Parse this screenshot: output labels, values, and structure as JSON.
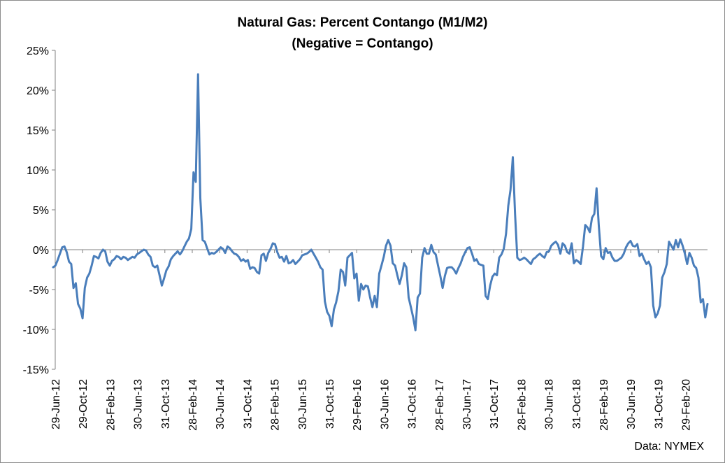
{
  "chart_data": {
    "type": "line",
    "title": "Natural Gas: Percent Contango (M1/M2)",
    "subtitle": "(Negative = Contango)",
    "source": "Data: NYMEX",
    "xlabel": "",
    "ylabel": "",
    "ylim": [
      -15,
      25
    ],
    "yticks": [
      "-15%",
      "-10%",
      "-5%",
      "0%",
      "5%",
      "10%",
      "15%",
      "20%",
      "25%"
    ],
    "ytick_values": [
      -15,
      -10,
      -5,
      0,
      5,
      10,
      15,
      20,
      25
    ],
    "xticks": [
      "29-Jun-12",
      "29-Oct-12",
      "28-Feb-13",
      "30-Jun-13",
      "31-Oct-13",
      "28-Feb-14",
      "30-Jun-14",
      "31-Oct-14",
      "28-Feb-15",
      "30-Jun-15",
      "31-Oct-15",
      "29-Feb-16",
      "30-Jun-16",
      "31-Oct-16",
      "28-Feb-17",
      "30-Jun-17",
      "31-Oct-17",
      "28-Feb-18",
      "30-Jun-18",
      "31-Oct-18",
      "28-Feb-19",
      "30-Jun-19",
      "31-Oct-19",
      "29-Feb-20"
    ],
    "grid": false,
    "legend": "none",
    "series_color": "#4a7ebb",
    "series": [
      {
        "name": "",
        "unit": "%",
        "x_start": "2012-06-29",
        "x_end": "2020-05-31",
        "values": [
          -2.2,
          -2,
          -1.3,
          -0.5,
          0.3,
          0.4,
          -0.3,
          -1.5,
          -1.8,
          -4.8,
          -4.2,
          -6.8,
          -7.4,
          -8.6,
          -4.8,
          -3.5,
          -3.0,
          -2.0,
          -0.8,
          -0.9,
          -1.1,
          -0.4,
          0.0,
          -0.2,
          -1.5,
          -2.0,
          -1.4,
          -1.2,
          -0.8,
          -0.9,
          -1.2,
          -0.9,
          -1.0,
          -1.3,
          -1.1,
          -0.9,
          -1.0,
          -0.6,
          -0.4,
          -0.2,
          0.0,
          -0.1,
          -0.6,
          -0.9,
          -2.0,
          -2.2,
          -2.0,
          -3.2,
          -4.5,
          -3.6,
          -2.6,
          -2.1,
          -1.2,
          -0.8,
          -0.5,
          -0.2,
          -0.6,
          -0.2,
          0.4,
          1.0,
          1.4,
          2.6,
          9.7,
          8.5,
          22.0,
          6.5,
          1.2,
          1.0,
          0.2,
          -0.6,
          -0.4,
          -0.5,
          -0.3,
          0.0,
          0.3,
          0.1,
          -0.4,
          0.4,
          0.2,
          -0.2,
          -0.5,
          -0.6,
          -0.9,
          -1.4,
          -1.2,
          -1.5,
          -1.3,
          -2.4,
          -2.2,
          -2.3,
          -2.8,
          -3.0,
          -0.7,
          -0.5,
          -1.4,
          -0.4,
          0.1,
          0.8,
          0.7,
          -0.3,
          -1.0,
          -0.9,
          -1.5,
          -0.8,
          -1.7,
          -1.6,
          -1.3,
          -1.8,
          -1.5,
          -1.2,
          -0.7,
          -0.6,
          -0.5,
          -0.3,
          0.0,
          -0.5,
          -1.0,
          -1.5,
          -2.2,
          -2.5,
          -6.5,
          -7.8,
          -8.3,
          -9.6,
          -7.5,
          -6.6,
          -5.2,
          -2.5,
          -2.8,
          -4.5,
          -1.0,
          -0.7,
          -0.4,
          -3.6,
          -3.0,
          -6.4,
          -4.3,
          -5.0,
          -4.5,
          -4.6,
          -6.0,
          -7.2,
          -5.8,
          -7.2,
          -3.0,
          -2.0,
          -0.9,
          0.5,
          1.2,
          0.5,
          -1.7,
          -2.0,
          -3.2,
          -4.3,
          -3.2,
          -1.7,
          -2.2,
          -6.0,
          -7.2,
          -8.5,
          -10.1,
          -6.0,
          -5.5,
          -1.0,
          0.2,
          -0.5,
          -0.5,
          0.6,
          -0.3,
          -0.6,
          -2.0,
          -3.3,
          -4.8,
          -3.3,
          -2.3,
          -2.2,
          -2.2,
          -2.5,
          -3.0,
          -2.3,
          -1.7,
          -0.9,
          -0.3,
          0.2,
          0.3,
          -0.5,
          -1.4,
          -1.2,
          -1.8,
          -1.9,
          -2.0,
          -5.8,
          -6.2,
          -4.5,
          -3.4,
          -3.0,
          -3.2,
          -1.0,
          -0.6,
          0.1,
          2.0,
          5.5,
          7.5,
          11.6,
          4.5,
          -1.0,
          -1.3,
          -1.2,
          -1.0,
          -1.2,
          -1.5,
          -1.8,
          -1.2,
          -1.0,
          -0.7,
          -0.5,
          -0.8,
          -1.0,
          -0.3,
          -0.2,
          0.5,
          0.8,
          1.0,
          0.6,
          -0.5,
          0.8,
          0.5,
          -0.3,
          -0.5,
          0.8,
          -1.7,
          -1.3,
          -1.5,
          -1.8,
          0.4,
          3.1,
          2.8,
          2.2,
          4.0,
          4.5,
          7.7,
          3.0,
          -0.8,
          -1.2,
          0.2,
          -0.4,
          -0.3,
          -1.0,
          -1.4,
          -1.4,
          -1.2,
          -1.0,
          -0.5,
          0.3,
          0.8,
          1.1,
          0.5,
          0.4,
          0.7,
          -0.8,
          -0.5,
          -1.2,
          -1.8,
          -1.5,
          -2.2,
          -7.0,
          -8.5,
          -8.0,
          -7.0,
          -3.5,
          -2.8,
          -1.8,
          1.0,
          0.5,
          0.0,
          1.2,
          0.3,
          1.3,
          0.5,
          -0.5,
          -1.8,
          -0.4,
          -1.0,
          -2.0,
          -2.3,
          -3.5,
          -6.6,
          -6.2,
          -8.5,
          -6.8
        ]
      }
    ]
  }
}
